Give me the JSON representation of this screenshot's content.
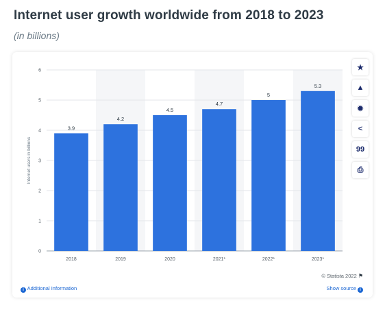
{
  "header": {
    "title": "Internet user growth worldwide from 2018 to 2023",
    "subtitle": "(in billions)"
  },
  "toolbar": {
    "buttons": [
      {
        "icon": "star-icon",
        "glyph": "★"
      },
      {
        "icon": "bell-icon",
        "glyph": "▲"
      },
      {
        "icon": "gear-icon",
        "glyph": "✹"
      },
      {
        "icon": "share-icon",
        "glyph": "<"
      },
      {
        "icon": "quote-icon",
        "glyph": "99"
      },
      {
        "icon": "print-icon",
        "glyph": "⎙"
      }
    ]
  },
  "footer": {
    "copyright": "© Statista 2022",
    "additional_info": "Additional Information",
    "show_source": "Show source"
  },
  "colors": {
    "bar": "#2d72de",
    "band": "#f5f6f8",
    "grid": "#e3e6ea",
    "accent": "#1a66d3"
  },
  "chart_data": {
    "type": "bar",
    "categories": [
      "2018",
      "2019",
      "2020",
      "2021*",
      "2022*",
      "2023*"
    ],
    "values": [
      3.9,
      4.2,
      4.5,
      4.7,
      5,
      5.3
    ],
    "value_labels": [
      "3.9",
      "4.2",
      "4.5",
      "4.7",
      "5",
      "5.3"
    ],
    "title": "Internet user growth worldwide from 2018 to 2023",
    "subtitle": "(in billions)",
    "xlabel": "",
    "ylabel": "Internet users in billions",
    "ylim": [
      0,
      6
    ],
    "yticks": [
      0,
      1,
      2,
      3,
      4,
      5,
      6
    ],
    "grid": true,
    "legend": "none"
  }
}
